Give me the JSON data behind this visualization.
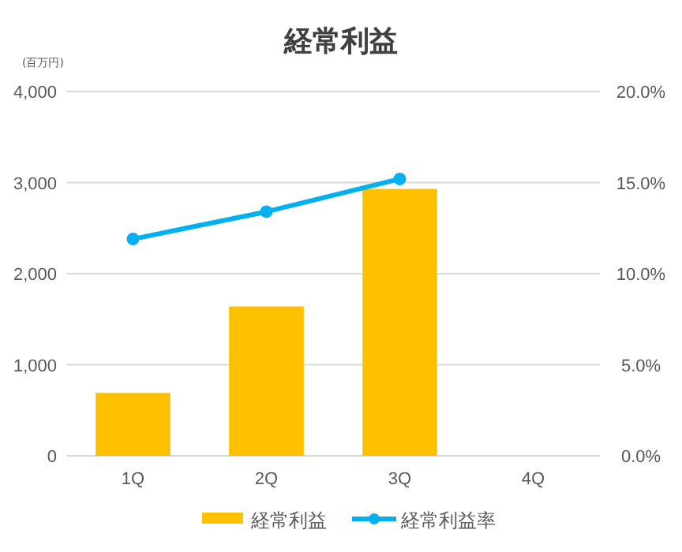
{
  "chart_data": {
    "type": "bar",
    "title": "経常利益",
    "ylabel": "(百万円)",
    "categories": [
      "1Q",
      "2Q",
      "3Q",
      "4Q"
    ],
    "series": [
      {
        "name": "経常利益",
        "color": "#ffc000",
        "values": [
          690,
          1640,
          2930,
          null
        ]
      },
      {
        "name": "経常利益率",
        "type": "line",
        "axis": "y2",
        "color": "#00b0f0",
        "marker": "circle",
        "values": [
          11.9,
          13.4,
          15.2,
          null
        ]
      }
    ],
    "ylim": [
      0,
      4000
    ],
    "yticks": [
      0,
      {
        "value": 1000,
        "label": "1,000"
      },
      {
        "value": 2000,
        "label": "2,000"
      },
      {
        "value": 3000,
        "label": "3,000"
      },
      {
        "value": 4000,
        "label": "4,000"
      }
    ],
    "y2lim": [
      0,
      20
    ],
    "y2ticks": [
      {
        "value": 0,
        "label": "0.0%"
      },
      {
        "value": 5,
        "label": "5.0%"
      },
      {
        "value": 10,
        "label": "10.0%"
      },
      {
        "value": 15,
        "label": "15.0%"
      },
      {
        "value": 20,
        "label": "20.0%"
      }
    ],
    "grid": "y",
    "legend": "bottom"
  }
}
